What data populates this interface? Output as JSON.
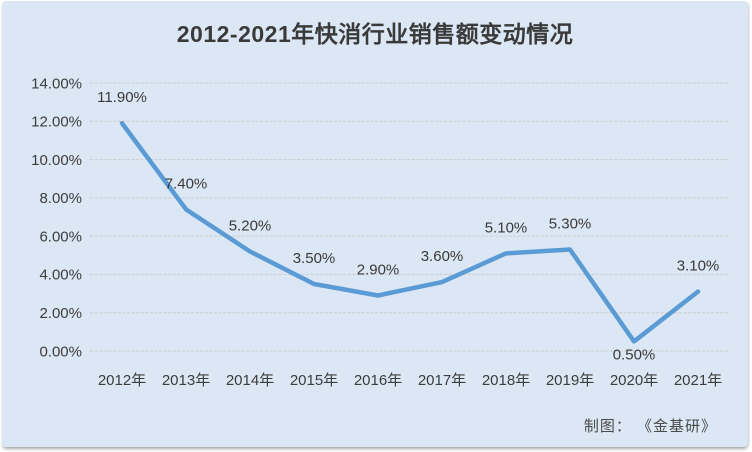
{
  "page": {
    "background_color": "#ffffff",
    "card_background_color": "#dbe7f4"
  },
  "header": {
    "title": "2012-2021年快消行业销售额变动情况"
  },
  "footer": {
    "credit": "制图： 《金基研》"
  },
  "chart_data": {
    "type": "line",
    "title": "2012-2021年快消行业销售额变动情况",
    "categories": [
      "2012年",
      "2013年",
      "2014年",
      "2015年",
      "2016年",
      "2017年",
      "2018年",
      "2019年",
      "2020年",
      "2021年"
    ],
    "values": [
      11.9,
      7.4,
      5.2,
      3.5,
      2.9,
      3.6,
      5.1,
      5.3,
      0.5,
      3.1
    ],
    "point_labels": [
      "11.90%",
      "7.40%",
      "5.20%",
      "3.50%",
      "2.90%",
      "3.60%",
      "5.10%",
      "5.30%",
      "0.50%",
      "3.10%"
    ],
    "label_below_indices": [
      8
    ],
    "yticks": [
      "0.00%",
      "2.00%",
      "4.00%",
      "6.00%",
      "8.00%",
      "10.00%",
      "12.00%",
      "14.00%"
    ],
    "ylim": [
      0,
      14
    ],
    "xlabel": "",
    "ylabel": "",
    "grid": true,
    "legend": "none",
    "line_color": "#5b9bd5",
    "gridline_color": "#c9c9c6",
    "text_color": "#3d3d3d"
  }
}
